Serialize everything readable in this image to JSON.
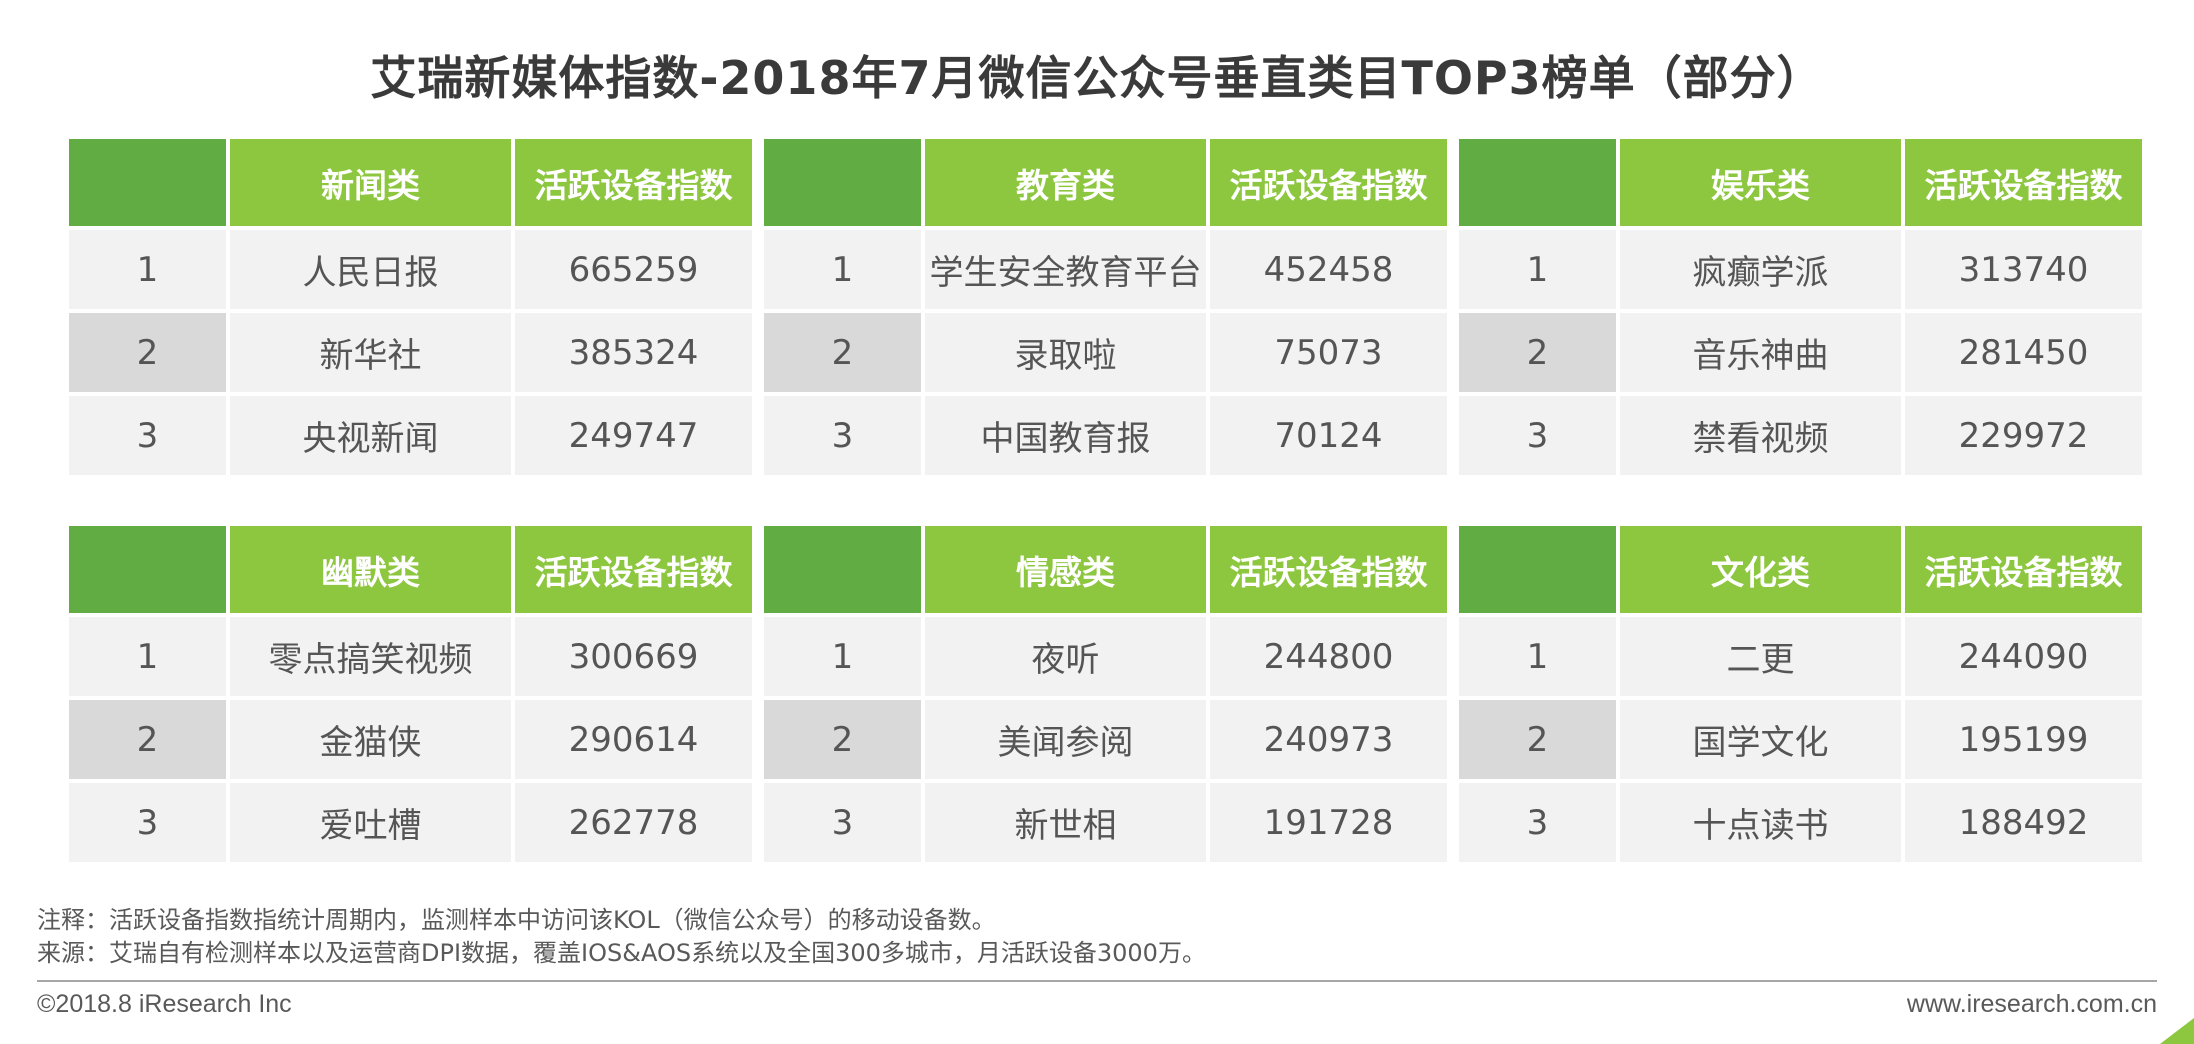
{
  "title": "艾瑞新媒体指数-2018年7月微信公众号垂直类目TOP3榜单（部分）",
  "index_label": "活跃设备指数",
  "tables": [
    {
      "category": "新闻类",
      "rows": [
        {
          "rank": "1",
          "name": "人民日报",
          "value": "665259"
        },
        {
          "rank": "2",
          "name": "新华社",
          "value": "385324"
        },
        {
          "rank": "3",
          "name": "央视新闻",
          "value": "249747"
        }
      ]
    },
    {
      "category": "教育类",
      "rows": [
        {
          "rank": "1",
          "name": "学生安全教育平台",
          "value": "452458"
        },
        {
          "rank": "2",
          "name": "录取啦",
          "value": "75073"
        },
        {
          "rank": "3",
          "name": "中国教育报",
          "value": "70124"
        }
      ]
    },
    {
      "category": "娱乐类",
      "rows": [
        {
          "rank": "1",
          "name": "疯癫学派",
          "value": "313740"
        },
        {
          "rank": "2",
          "name": "音乐神曲",
          "value": "281450"
        },
        {
          "rank": "3",
          "name": "禁看视频",
          "value": "229972"
        }
      ]
    },
    {
      "category": "幽默类",
      "rows": [
        {
          "rank": "1",
          "name": "零点搞笑视频",
          "value": "300669"
        },
        {
          "rank": "2",
          "name": "金猫侠",
          "value": "290614"
        },
        {
          "rank": "3",
          "name": "爱吐槽",
          "value": "262778"
        }
      ]
    },
    {
      "category": "情感类",
      "rows": [
        {
          "rank": "1",
          "name": "夜听",
          "value": "244800"
        },
        {
          "rank": "2",
          "name": "美闻参阅",
          "value": "240973"
        },
        {
          "rank": "3",
          "name": "新世相",
          "value": "191728"
        }
      ]
    },
    {
      "category": "文化类",
      "rows": [
        {
          "rank": "1",
          "name": "二更",
          "value": "244090"
        },
        {
          "rank": "2",
          "name": "国学文化",
          "value": "195199"
        },
        {
          "rank": "3",
          "name": "十点读书",
          "value": "188492"
        }
      ]
    }
  ],
  "notes": {
    "note": "注释：活跃设备指数指统计周期内，监测样本中访问该KOL（微信公众号）的移动设备数。",
    "source": "来源：艾瑞自有检测样本以及运营商DPI数据，覆盖IOS&AOS系统以及全国300多城市，月活跃设备3000万。"
  },
  "footer": {
    "copyright": "©2018.8 iResearch Inc",
    "website": "www.iresearch.com.cn"
  },
  "colors": {
    "header_rank": "#62ad43",
    "header_main": "#8dc63f",
    "row_light": "#f2f2f2",
    "row_mid": "#d9d9d9"
  }
}
